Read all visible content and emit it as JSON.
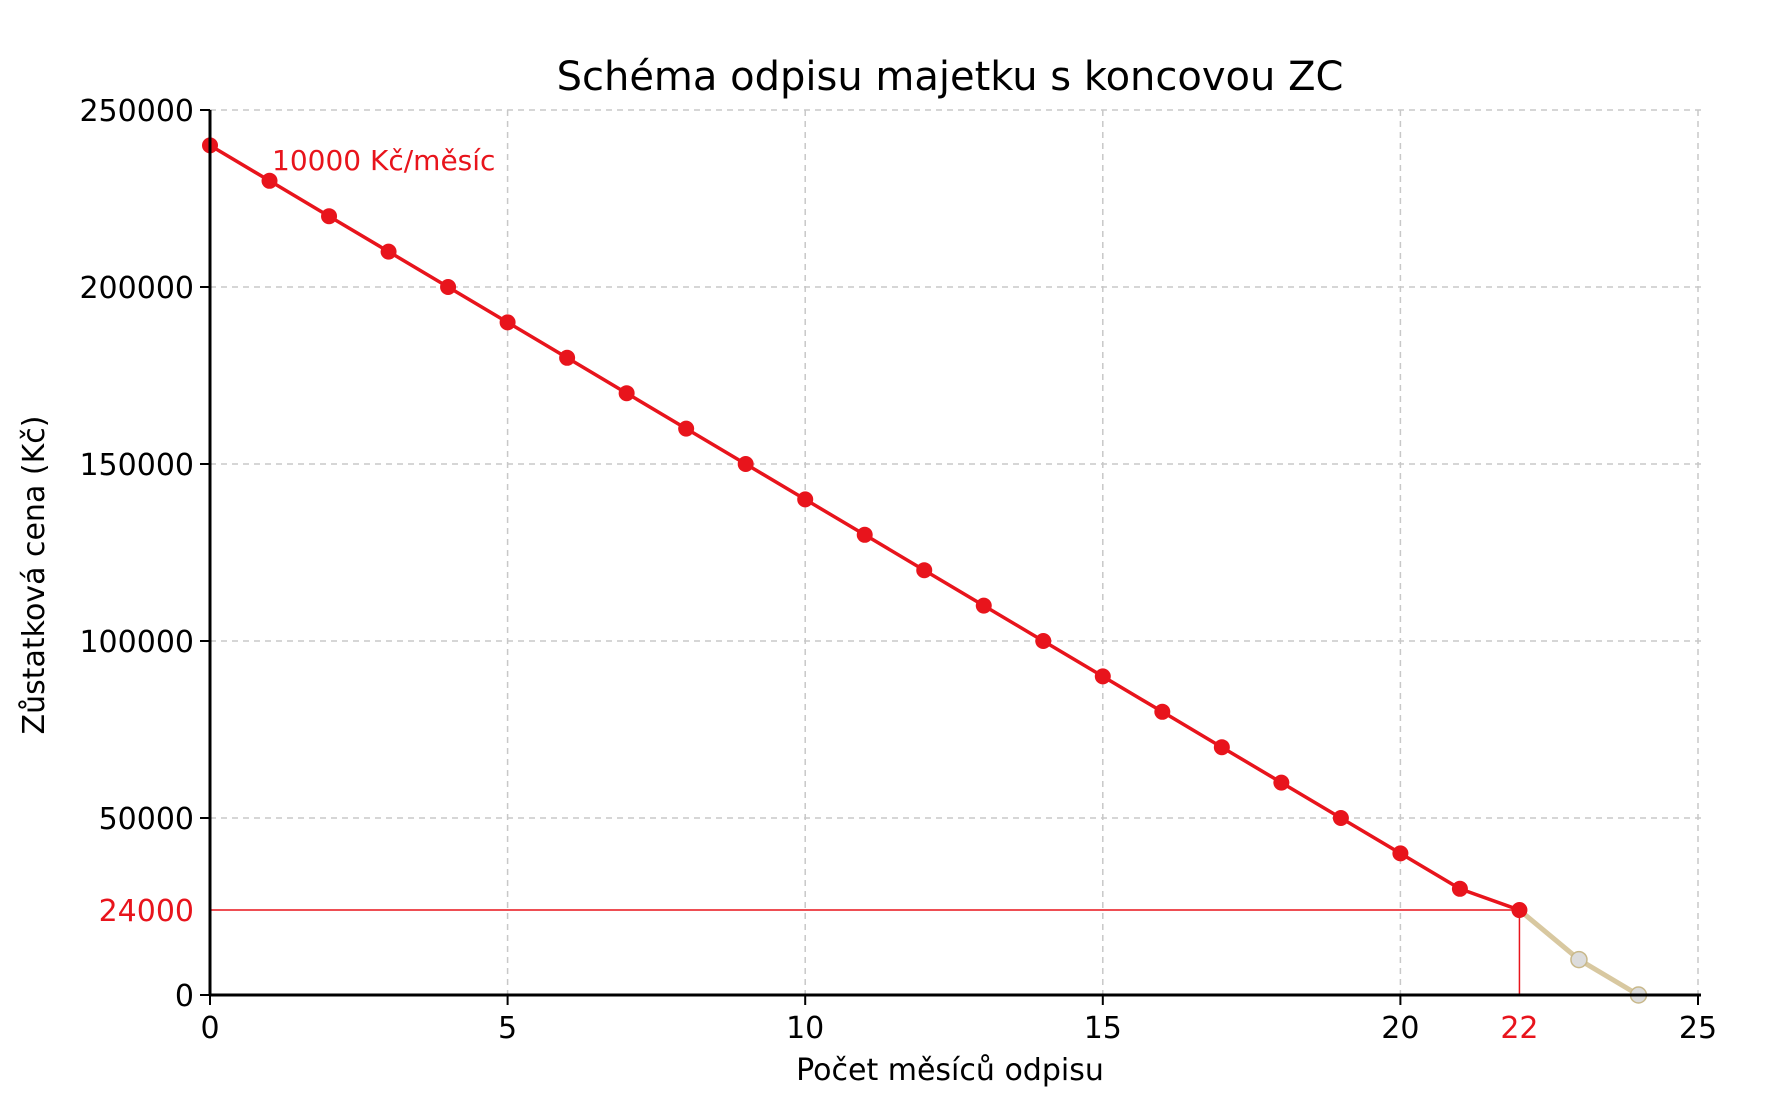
{
  "chart_data": {
    "type": "line",
    "title": "Schéma odpisu majetku s koncovou ZC",
    "xlabel": "Počet měsíců odpisu",
    "ylabel": "Zůstatková cena (Kč)",
    "xlim": [
      0,
      25
    ],
    "ylim": [
      0,
      250000
    ],
    "xticks": [
      0,
      5,
      10,
      15,
      20,
      25
    ],
    "yticks": [
      0,
      50000,
      100000,
      150000,
      200000,
      250000
    ],
    "grid": true,
    "series": [
      {
        "color": "#e8141c",
        "x": [
          0,
          1,
          2,
          3,
          4,
          5,
          6,
          7,
          8,
          9,
          10,
          11,
          12,
          13,
          14,
          15,
          16,
          17,
          18,
          19,
          20,
          21,
          22
        ],
        "y": [
          240000,
          230000,
          220000,
          210000,
          200000,
          190000,
          180000,
          170000,
          160000,
          150000,
          140000,
          130000,
          120000,
          110000,
          100000,
          90000,
          80000,
          70000,
          60000,
          50000,
          40000,
          30000,
          24000
        ]
      },
      {
        "color": "#d8c8a0",
        "marker_color": "#dcdcdc",
        "x": [
          22,
          23,
          24
        ],
        "y": [
          24000,
          10000,
          0
        ]
      }
    ],
    "reference_lines": {
      "y_value": 24000,
      "y_label": "24000",
      "x_value": 22,
      "x_label": "22",
      "color": "#e8141c"
    },
    "annotation": {
      "text": "10000 Kč/měsíc",
      "color": "#e8141c"
    }
  }
}
